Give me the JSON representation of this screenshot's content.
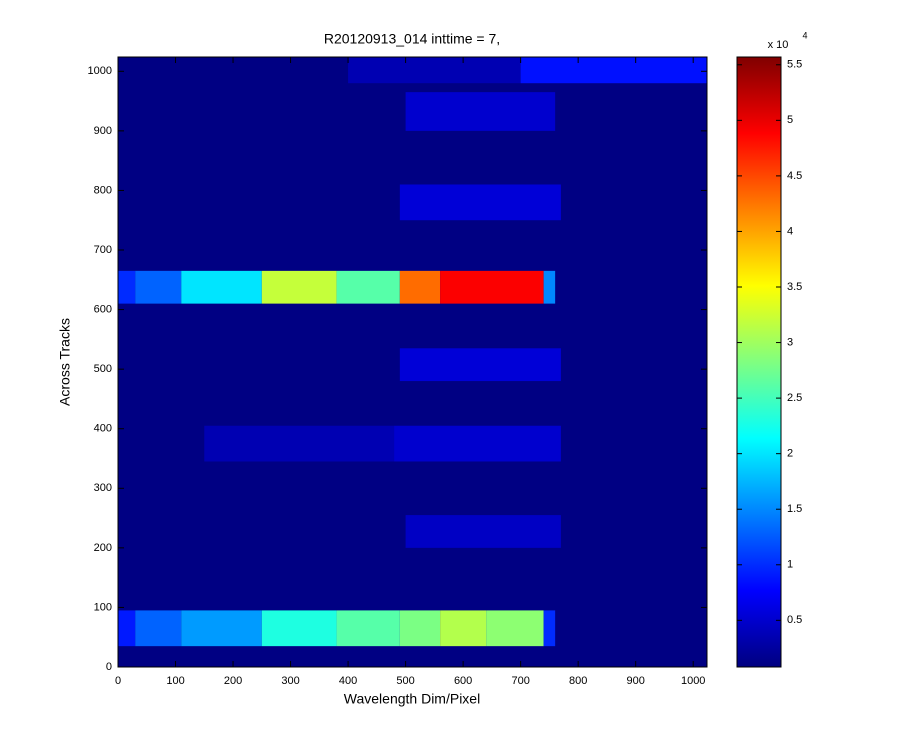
{
  "chart_data": {
    "type": "heatmap",
    "title": "R20120913_014 inttime = 7,",
    "xlabel": "Wavelength Dim/Pixel",
    "ylabel": "Across Tracks",
    "xlim": [
      0,
      1024
    ],
    "ylim": [
      0,
      1024
    ],
    "xticks": [
      0,
      100,
      200,
      300,
      400,
      500,
      600,
      700,
      800,
      900,
      1000
    ],
    "yticks": [
      0,
      100,
      200,
      300,
      400,
      500,
      600,
      700,
      800,
      900,
      1000
    ],
    "colormap": "jet",
    "clim": [
      0.08,
      5.57
    ],
    "cticks": [
      0.5,
      1,
      1.5,
      2,
      2.5,
      3,
      3.5,
      4,
      4.5,
      5,
      5.5
    ],
    "colorbar_multiplier": "x 10",
    "colorbar_exponent": "4",
    "regions": [
      {
        "x": [
          0,
          1024
        ],
        "y": [
          0,
          1024
        ],
        "value": 0.1
      },
      {
        "x": [
          400,
          700
        ],
        "y": [
          980,
          1024
        ],
        "value": 0.35
      },
      {
        "x": [
          700,
          1024
        ],
        "y": [
          980,
          1024
        ],
        "value": 0.85
      },
      {
        "x": [
          500,
          760
        ],
        "y": [
          900,
          965
        ],
        "value": 0.5
      },
      {
        "x": [
          490,
          770
        ],
        "y": [
          750,
          810
        ],
        "value": 0.55
      },
      {
        "x": [
          0,
          30
        ],
        "y": [
          610,
          665
        ],
        "value": 1.0
      },
      {
        "x": [
          30,
          110
        ],
        "y": [
          610,
          665
        ],
        "value": 1.3
      },
      {
        "x": [
          110,
          250
        ],
        "y": [
          610,
          665
        ],
        "value": 2.0
      },
      {
        "x": [
          250,
          380
        ],
        "y": [
          610,
          665
        ],
        "value": 3.2
      },
      {
        "x": [
          380,
          490
        ],
        "y": [
          610,
          665
        ],
        "value": 2.6
      },
      {
        "x": [
          490,
          560
        ],
        "y": [
          610,
          665
        ],
        "value": 4.3
      },
      {
        "x": [
          560,
          740
        ],
        "y": [
          610,
          665
        ],
        "value": 4.9
      },
      {
        "x": [
          740,
          760
        ],
        "y": [
          610,
          665
        ],
        "value": 1.5
      },
      {
        "x": [
          490,
          770
        ],
        "y": [
          480,
          535
        ],
        "value": 0.55
      },
      {
        "x": [
          150,
          480
        ],
        "y": [
          345,
          405
        ],
        "value": 0.35
      },
      {
        "x": [
          480,
          770
        ],
        "y": [
          345,
          405
        ],
        "value": 0.5
      },
      {
        "x": [
          500,
          770
        ],
        "y": [
          200,
          255
        ],
        "value": 0.45
      },
      {
        "x": [
          0,
          30
        ],
        "y": [
          35,
          95
        ],
        "value": 0.9
      },
      {
        "x": [
          30,
          110
        ],
        "y": [
          35,
          95
        ],
        "value": 1.3
      },
      {
        "x": [
          110,
          250
        ],
        "y": [
          35,
          95
        ],
        "value": 1.6
      },
      {
        "x": [
          250,
          380
        ],
        "y": [
          35,
          95
        ],
        "value": 2.3
      },
      {
        "x": [
          380,
          490
        ],
        "y": [
          35,
          95
        ],
        "value": 2.6
      },
      {
        "x": [
          490,
          560
        ],
        "y": [
          35,
          95
        ],
        "value": 2.8
      },
      {
        "x": [
          560,
          640
        ],
        "y": [
          35,
          95
        ],
        "value": 3.1
      },
      {
        "x": [
          640,
          740
        ],
        "y": [
          35,
          95
        ],
        "value": 2.9
      },
      {
        "x": [
          740,
          760
        ],
        "y": [
          35,
          95
        ],
        "value": 1.0
      }
    ]
  }
}
